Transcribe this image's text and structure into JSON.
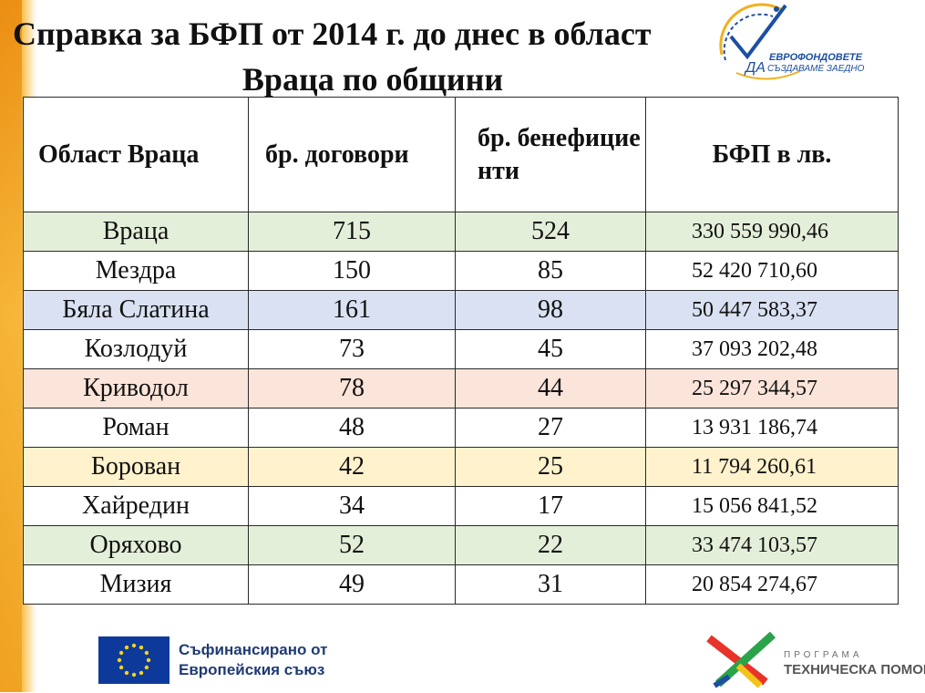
{
  "title": {
    "line1": "Справка за БФП от 2014 г. до днес в област",
    "line2": "Враца по общини"
  },
  "logo": {
    "brand": "ЕВРОФОНДОВЕТЕ",
    "da": "ДА",
    "slogan": "СЪЗДАВАМЕ ЗАЕДНО"
  },
  "table": {
    "headers": [
      "Област Враца",
      "бр. договори",
      "бр. бенефицие нти",
      "БФП в лв."
    ],
    "rows": [
      {
        "name": "Враца",
        "contracts": "715",
        "beneficiaries": "524",
        "amount": "330 559 990,46",
        "bg": "#e4efd9"
      },
      {
        "name": "Мездра",
        "contracts": "150",
        "beneficiaries": "85",
        "amount": "52 420 710,60",
        "bg": "#ffffff"
      },
      {
        "name": "Бяла Слатина",
        "contracts": "161",
        "beneficiaries": "98",
        "amount": "50 447 583,37",
        "bg": "#d9e1f2"
      },
      {
        "name": "Козлодуй",
        "contracts": "73",
        "beneficiaries": "45",
        "amount": "37 093 202,48",
        "bg": "#ffffff"
      },
      {
        "name": "Криводол",
        "contracts": "78",
        "beneficiaries": "44",
        "amount": "25 297 344,57",
        "bg": "#fbe4d9"
      },
      {
        "name": "Роман",
        "contracts": "48",
        "beneficiaries": "27",
        "amount": "13 931 186,74",
        "bg": "#ffffff"
      },
      {
        "name": "Борован",
        "contracts": "42",
        "beneficiaries": "25",
        "amount": "11 794 260,61",
        "bg": "#fff2cc"
      },
      {
        "name": "Хайредин",
        "contracts": "34",
        "beneficiaries": "17",
        "amount": "15 056 841,52",
        "bg": "#ffffff"
      },
      {
        "name": "Оряхово",
        "contracts": "52",
        "beneficiaries": "22",
        "amount": "33 474 103,57",
        "bg": "#e4efd9"
      },
      {
        "name": "Мизия",
        "contracts": "49",
        "beneficiaries": "31",
        "amount": "20 854 274,67",
        "bg": "#ffffff"
      }
    ]
  },
  "footer": {
    "eu_line1": "Съфинансирано от",
    "eu_line2": "Европейския съюз",
    "program_line1": "ПРОГРАМА",
    "program_line2": "ТЕХНИЧЕСКА ПОМОЩ"
  }
}
